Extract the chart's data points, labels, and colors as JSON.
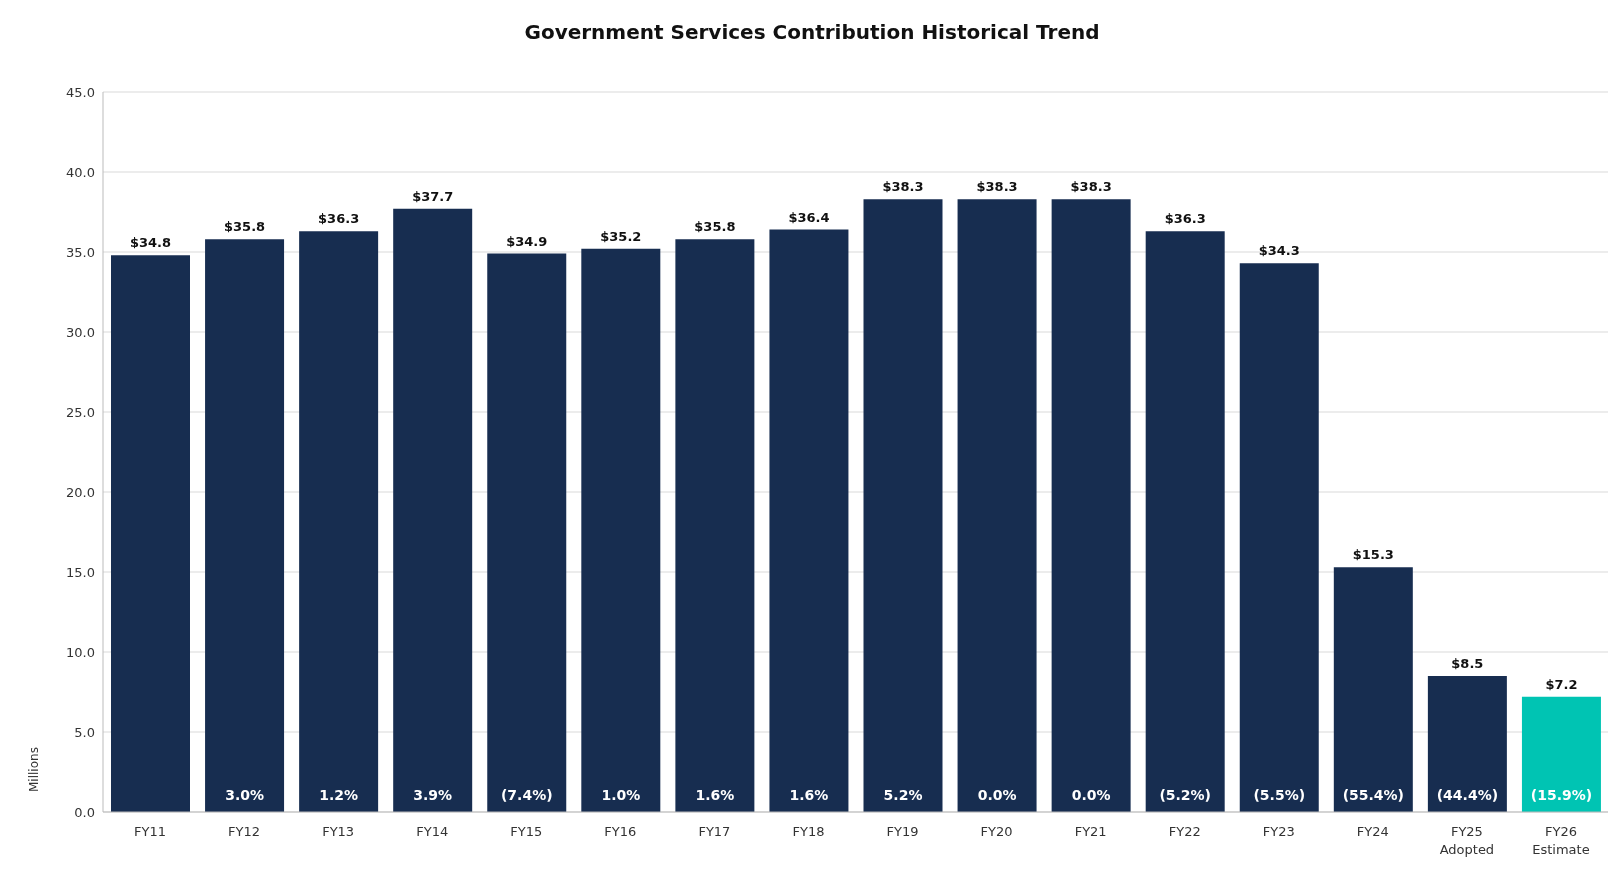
{
  "chart_data": {
    "type": "bar",
    "title": "Government Services Contribution Historical Trend",
    "ylabel": "Millions",
    "categories": [
      "FY11",
      "FY12",
      "FY13",
      "FY14",
      "FY15",
      "FY16",
      "FY17",
      "FY18",
      "FY19",
      "FY20",
      "FY21",
      "FY22",
      "FY23",
      "FY24",
      "FY25\nAdopted",
      "FY26\nEstimate"
    ],
    "values": [
      34.8,
      35.8,
      36.3,
      37.7,
      34.9,
      35.2,
      35.8,
      36.4,
      38.3,
      38.3,
      38.3,
      36.3,
      34.3,
      15.3,
      8.5,
      7.2
    ],
    "colors": [
      "#172d50",
      "#172d50",
      "#172d50",
      "#172d50",
      "#172d50",
      "#172d50",
      "#172d50",
      "#172d50",
      "#172d50",
      "#172d50",
      "#172d50",
      "#172d50",
      "#172d50",
      "#172d50",
      "#172d50",
      "#00c4b3"
    ],
    "value_labels": [
      "$34.8",
      "$35.8",
      "$36.3",
      "$37.7",
      "$34.9",
      "$35.2",
      "$35.8",
      "$36.4",
      "$38.3",
      "$38.3",
      "$38.3",
      "$36.3",
      "$34.3",
      "$15.3",
      "$8.5",
      "$7.2"
    ],
    "annotations": [
      "3.0%",
      "1.2%",
      "3.9%",
      "(7.4%)",
      "1.0%",
      "1.6%",
      "1.6%",
      "5.2%",
      "0.0%",
      "0.0%",
      "(5.2%)",
      "(5.5%)",
      "(55.4%)",
      "(44.4%)",
      "(15.9%)"
    ],
    "ylim": [
      0,
      45
    ],
    "yticks": [
      {
        "value": 0,
        "label": "0.0"
      },
      {
        "value": 5,
        "label": "5.0"
      },
      {
        "value": 10,
        "label": "10.0"
      },
      {
        "value": 15,
        "label": "15.0"
      },
      {
        "value": 20,
        "label": "20.0"
      },
      {
        "value": 25,
        "label": "25.0"
      },
      {
        "value": 30,
        "label": "30.0"
      },
      {
        "value": 35,
        "label": "35.0"
      },
      {
        "value": 40,
        "label": "40.0"
      },
      {
        "value": 45,
        "label": "45.0"
      }
    ],
    "grid": "y"
  }
}
